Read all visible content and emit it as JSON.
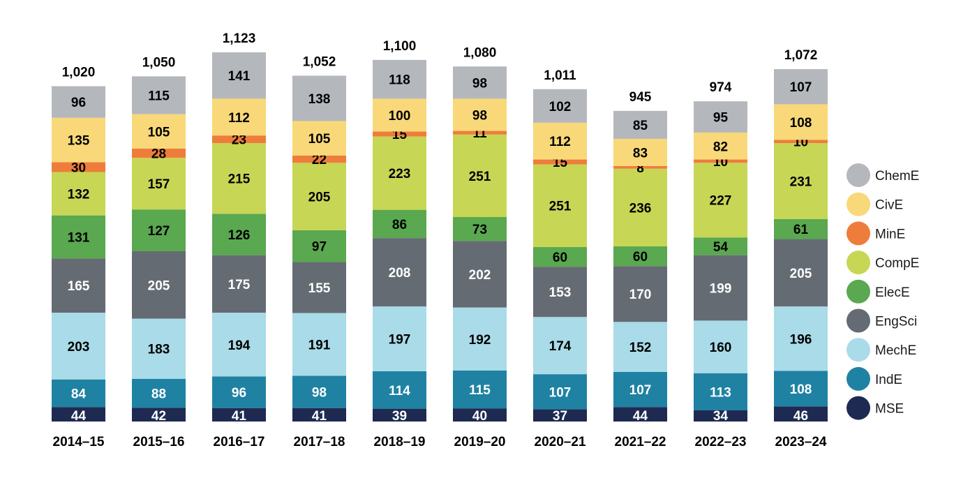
{
  "chart_data": {
    "type": "bar",
    "stacked": true,
    "categories": [
      "2014–15",
      "2015–16",
      "2016–17",
      "2017–18",
      "2018–19",
      "2019–20",
      "2020–21",
      "2021–22",
      "2022–23",
      "2023–24"
    ],
    "totals": [
      "1,020",
      "1,050",
      "1,123",
      "1,052",
      "1,100",
      "1,080",
      "1,011",
      "945",
      "974",
      "1,072"
    ],
    "series": [
      {
        "name": "MSE",
        "color": "#1e2a52",
        "label_color": "#ffffff",
        "values": [
          44,
          42,
          41,
          41,
          39,
          40,
          37,
          44,
          34,
          46
        ]
      },
      {
        "name": "IndE",
        "color": "#1f82a3",
        "label_color": "#ffffff",
        "values": [
          84,
          88,
          96,
          98,
          114,
          115,
          107,
          107,
          113,
          108
        ]
      },
      {
        "name": "MechE",
        "color": "#a9dbe8",
        "label_color": "#000000",
        "values": [
          203,
          183,
          194,
          191,
          197,
          192,
          174,
          152,
          160,
          196
        ]
      },
      {
        "name": "EngSci",
        "color": "#656b73",
        "label_color": "#ffffff",
        "values": [
          165,
          205,
          175,
          155,
          208,
          202,
          153,
          170,
          199,
          205
        ]
      },
      {
        "name": "ElecE",
        "color": "#5aa84f",
        "label_color": "#000000",
        "values": [
          131,
          127,
          126,
          97,
          86,
          73,
          60,
          60,
          54,
          61
        ]
      },
      {
        "name": "CompE",
        "color": "#c8d655",
        "label_color": "#000000",
        "values": [
          132,
          157,
          215,
          205,
          223,
          251,
          251,
          236,
          227,
          231
        ]
      },
      {
        "name": "MinE",
        "color": "#ee7d3b",
        "label_color": "#000000",
        "values": [
          30,
          28,
          23,
          22,
          15,
          11,
          15,
          8,
          10,
          10
        ]
      },
      {
        "name": "CivE",
        "color": "#f8d878",
        "label_color": "#000000",
        "values": [
          135,
          105,
          112,
          105,
          100,
          98,
          112,
          83,
          82,
          108
        ]
      },
      {
        "name": "ChemE",
        "color": "#b4b8bc",
        "label_color": "#000000",
        "values": [
          96,
          115,
          141,
          138,
          118,
          98,
          102,
          85,
          95,
          107
        ]
      }
    ],
    "legend_order": [
      "ChemE",
      "CivE",
      "MinE",
      "CompE",
      "ElecE",
      "EngSci",
      "MechE",
      "IndE",
      "MSE"
    ],
    "legend_position": "right",
    "ylim": [
      0,
      1123
    ],
    "grid": false,
    "title": "",
    "xlabel": "",
    "ylabel": ""
  }
}
